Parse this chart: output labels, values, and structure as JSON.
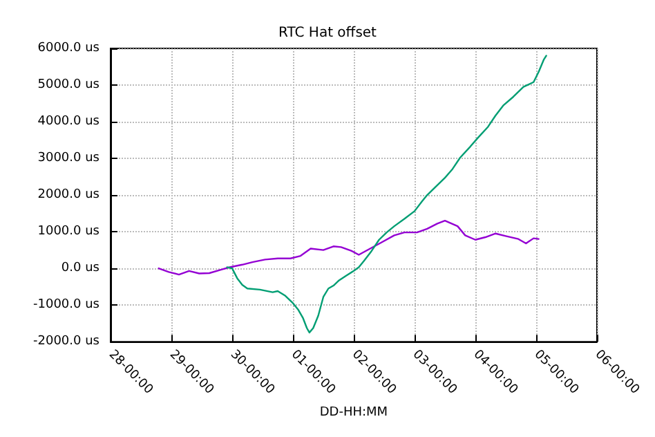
{
  "chart_data": {
    "type": "line",
    "title": "RTC Hat offset",
    "xlabel": "DD-HH:MM",
    "xlim": [
      "--04-28T00:00",
      "--05-06T00:00"
    ],
    "xticks": [
      {
        "value": "--04-28T00:00",
        "label": "28-00:00"
      },
      {
        "value": "--04-29T00:00",
        "label": "29-00:00"
      },
      {
        "value": "--04-30T00:00",
        "label": "30-00:00"
      },
      {
        "value": "--05-01T00:00",
        "label": "01-00:00"
      },
      {
        "value": "--05-02T00:00",
        "label": "02-00:00"
      },
      {
        "value": "--05-03T00:00",
        "label": "03-00:00"
      },
      {
        "value": "--05-04T00:00",
        "label": "04-00:00"
      },
      {
        "value": "--05-05T00:00",
        "label": "05-00:00"
      },
      {
        "value": "--05-06T00:00",
        "label": "06-00:00"
      }
    ],
    "ylim": [
      -2000,
      6000
    ],
    "yticks": [
      {
        "value": -2000,
        "label": "-2000.0 us"
      },
      {
        "value": -1000,
        "label": "-1000.0 us"
      },
      {
        "value": 0,
        "label": "0.0 us"
      },
      {
        "value": 1000,
        "label": "1000.0 us"
      },
      {
        "value": 2000,
        "label": "2000.0 us"
      },
      {
        "value": 3000,
        "label": "3000.0 us"
      },
      {
        "value": 4000,
        "label": "4000.0 us"
      },
      {
        "value": 5000,
        "label": "5000.0 us"
      },
      {
        "value": 6000,
        "label": "6000.0 us"
      }
    ],
    "grid": true,
    "marker": "none",
    "line_style": "solid",
    "series": [
      {
        "color": "#9400d3",
        "x": [
          "--04-28T19:00",
          "--04-28T23:00",
          "--04-29T03:00",
          "--04-29T07:00",
          "--04-29T11:00",
          "--04-29T15:00",
          "--04-29T20:00",
          "--04-29T23:00",
          "--04-30T04:00",
          "--04-30T08:00",
          "--04-30T13:00",
          "--04-30T18:00",
          "--04-30T23:00",
          "--05-01T03:00",
          "--05-01T07:00",
          "--05-01T12:00",
          "--05-01T16:00",
          "--05-01T19:00",
          "--05-01T23:00",
          "--05-02T02:00",
          "--05-02T06:00",
          "--05-02T11:00",
          "--05-02T16:00",
          "--05-02T20:00",
          "--05-03T01:00",
          "--05-03T05:00",
          "--05-03T09:00",
          "--05-03T12:00",
          "--05-03T17:00",
          "--05-03T20:00",
          "--05-04T00:00",
          "--05-04T04:00",
          "--05-04T08:00",
          "--05-04T12:00",
          "--05-04T17:00",
          "--05-04T20:00",
          "--05-04T23:00",
          "--05-05T01:00"
        ],
        "values": [
          0,
          -100,
          -170,
          -70,
          -140,
          -130,
          -30,
          30,
          100,
          170,
          240,
          270,
          270,
          340,
          540,
          500,
          600,
          580,
          480,
          370,
          520,
          710,
          900,
          980,
          980,
          1080,
          1220,
          1300,
          1150,
          900,
          780,
          850,
          950,
          880,
          800,
          680,
          820,
          800
        ]
      },
      {
        "color": "#009e73",
        "x": [
          "--04-29T22:00",
          "--04-30T00:00",
          "--04-30T02:00",
          "--04-30T04:00",
          "--04-30T06:00",
          "--04-30T11:00",
          "--04-30T16:00",
          "--04-30T18:00",
          "--04-30T21:00",
          "--05-01T00:00",
          "--05-01T02:00",
          "--05-01T04:00",
          "--05-01T05:30",
          "--05-01T06:30",
          "--05-01T08:00",
          "--05-01T10:00",
          "--05-01T12:00",
          "--05-01T14:00",
          "--05-01T16:00",
          "--05-01T18:00",
          "--05-01T21:00",
          "--05-02T00:00",
          "--05-02T02:00",
          "--05-02T04:00",
          "--05-02T07:00",
          "--05-02T10:00",
          "--05-02T13:00",
          "--05-02T16:00",
          "--05-02T20:00",
          "--05-03T00:00",
          "--05-03T03:00",
          "--05-03T05:00",
          "--05-03T08:00",
          "--05-03T12:00",
          "--05-03T15:00",
          "--05-03T18:00",
          "--05-03T22:00",
          "--05-04T01:00",
          "--05-04T05:00",
          "--05-04T08:00",
          "--05-04T11:00",
          "--05-04T15:00",
          "--05-04T19:00",
          "--05-04T23:00",
          "--05-05T01:00",
          "--05-05T03:00",
          "--05-05T04:00"
        ],
        "values": [
          30,
          0,
          -270,
          -450,
          -550,
          -580,
          -650,
          -620,
          -750,
          -950,
          -1120,
          -1360,
          -1630,
          -1750,
          -1630,
          -1290,
          -780,
          -550,
          -470,
          -340,
          -200,
          -70,
          30,
          200,
          470,
          780,
          980,
          1150,
          1350,
          1560,
          1830,
          2000,
          2200,
          2470,
          2710,
          3020,
          3320,
          3560,
          3860,
          4170,
          4440,
          4680,
          4950,
          5080,
          5360,
          5690,
          5800
        ]
      }
    ]
  }
}
